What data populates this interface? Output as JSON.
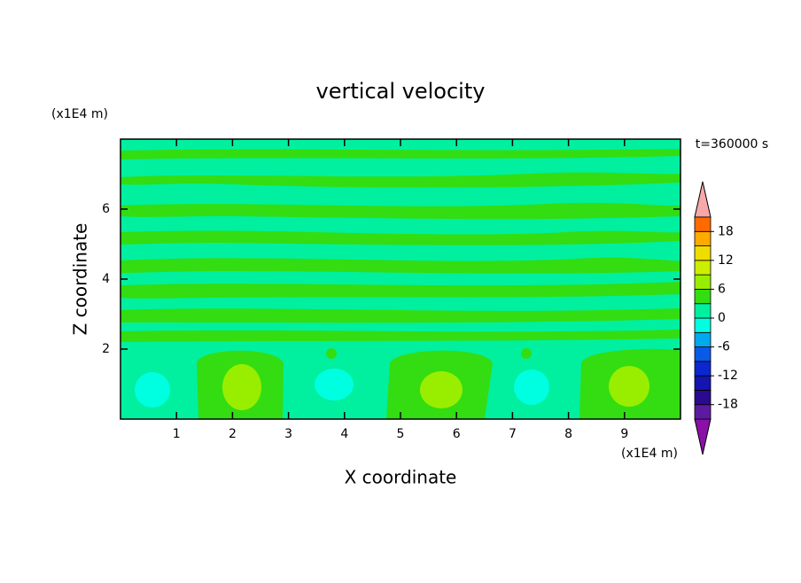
{
  "chart_data": {
    "type": "contour",
    "title": "vertical velocity",
    "annotation": "t=360000 s",
    "x_label": "X coordinate",
    "y_label": "Z coordinate",
    "x_unit": "(x1E4 m)",
    "y_unit": "(x1E4 m)",
    "xlim": [
      0,
      10
    ],
    "xticks": [
      1,
      2,
      3,
      4,
      5,
      6,
      7,
      8,
      9
    ],
    "ylim": [
      0,
      8
    ],
    "yticks": [
      2,
      4,
      6
    ],
    "colorbar": {
      "levels": [
        -21,
        -18,
        -15,
        -12,
        -9,
        -6,
        -3,
        0,
        3,
        6,
        9,
        12,
        15,
        18,
        21
      ],
      "ticks": [
        -18,
        -12,
        -6,
        0,
        6,
        12,
        18
      ],
      "colors": [
        "#8a10a8",
        "#5c1aa0",
        "#2a0a90",
        "#1414b0",
        "#0a28d0",
        "#0a5ae8",
        "#00a8f0",
        "#00ffe0",
        "#00f0a0",
        "#33dd11",
        "#99ee00",
        "#ccee00",
        "#f0dd00",
        "#ffaa00",
        "#ff6a00",
        "#ff2a00",
        "#f8a8a8"
      ]
    }
  }
}
